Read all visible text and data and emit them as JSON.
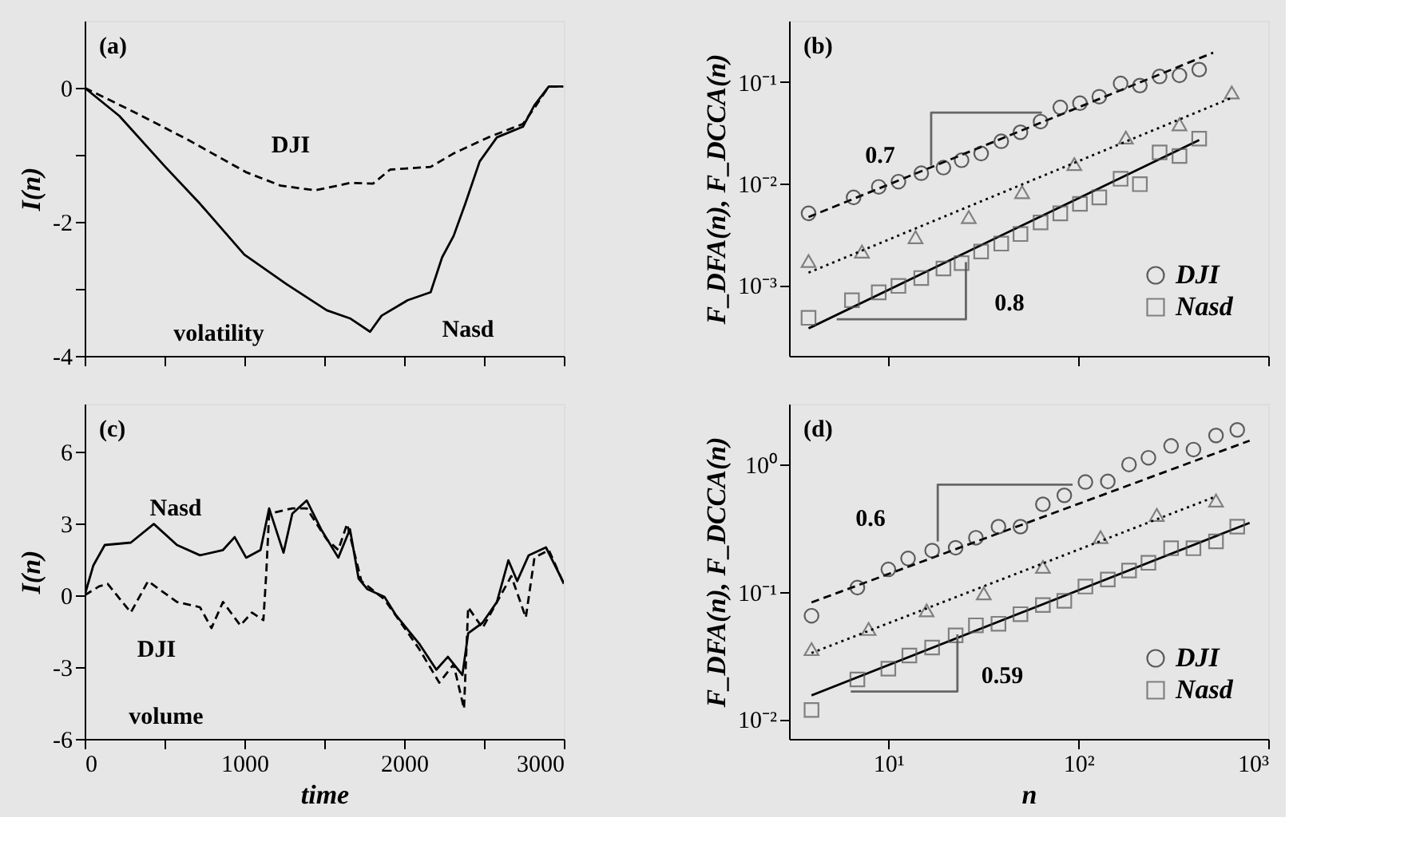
{
  "chart_data": [
    {
      "type": "line",
      "tick_labels": "y",
      "ylabel": "I(n)",
      "xlim": [
        0,
        3000
      ],
      "ylim": [
        -4,
        1
      ],
      "xticks": [
        0,
        {
          "value": 500,
          "label": null
        },
        1000,
        {
          "value": 1500,
          "label": null
        },
        2000,
        {
          "value": 2500,
          "label": null
        },
        3000
      ],
      "yticks": [
        -4,
        {
          "value": -3,
          "label": null
        },
        -2,
        {
          "value": -1,
          "label": null
        },
        0
      ],
      "grid": false,
      "legend": false,
      "annotations": [
        "(a)",
        "DJI",
        "volatility",
        "Nasd"
      ],
      "series": [
        {
          "color": "#000000",
          "line_style": "solid",
          "x": [
            0,
            217,
            505,
            722,
            1000,
            1264,
            1516,
            1661,
            1787,
            1859,
            2022,
            2166,
            2238,
            2310,
            2383,
            2473,
            2581,
            2744,
            2816,
            2906,
            2996
          ],
          "values": [
            0,
            -0.42,
            -1.18,
            -1.73,
            -2.49,
            -2.93,
            -3.32,
            -3.44,
            -3.64,
            -3.4,
            -3.17,
            -3.05,
            -2.53,
            -2.21,
            -1.73,
            -1.1,
            -0.74,
            -0.58,
            -0.26,
            0.02,
            0.02
          ]
        },
        {
          "color": "#000000",
          "line_style": "dashed",
          "x": [
            0,
            325,
            650,
            1011,
            1227,
            1444,
            1661,
            1805,
            1913,
            2166,
            2310,
            2527,
            2744,
            2816,
            2906,
            2996
          ],
          "values": [
            0,
            -0.38,
            -0.78,
            -1.26,
            -1.46,
            -1.53,
            -1.42,
            -1.43,
            -1.22,
            -1.18,
            -0.98,
            -0.74,
            -0.54,
            -0.3,
            0.02,
            0.02
          ]
        }
      ]
    },
    {
      "type": "scatter",
      "tick_labels": "y",
      "log": "xy",
      "ylabel": "F_DFA(n), F_DCCA(n)",
      "xlim": [
        3,
        1000
      ],
      "ylim": [
        0.0002,
        0.4
      ],
      "xticks": [
        {
          "value": 10,
          "label": null
        },
        {
          "value": 100,
          "label": null
        },
        {
          "value": 1000,
          "label": null
        }
      ],
      "yticks": [
        {
          "value": 0.001,
          "label": "10⁻³"
        },
        {
          "value": 0.01,
          "label": "10⁻²"
        },
        {
          "value": 0.1,
          "label": "10⁻¹"
        }
      ],
      "grid": false,
      "legend": "bottom right",
      "annotations": [
        "(b)",
        "0.7",
        "0.8"
      ],
      "series": [
        {
          "name": "DJI",
          "marker": "circle",
          "color": "#222222",
          "x": [
            3.8,
            6.56,
            8.9,
            11.3,
            14.9,
            19.5,
            24.3,
            30.8,
            39.3,
            49.6,
            63.3,
            80.4,
            102,
            129,
            167,
            211,
            268,
            341,
            433
          ],
          "values": [
            0.00507,
            0.00728,
            0.00925,
            0.0104,
            0.0126,
            0.0143,
            0.0169,
            0.0197,
            0.026,
            0.0319,
            0.0406,
            0.0561,
            0.0617,
            0.0714,
            0.0964,
            0.0919,
            0.113,
            0.116,
            0.132
          ]
        },
        {
          "marker": "triangle",
          "color": "#555555",
          "x": [
            3.8,
            7.26,
            13.9,
            26.5,
            50.6,
            95.3,
            178,
            341,
            643
          ],
          "values": [
            0.00172,
            0.00213,
            0.00295,
            0.00466,
            0.0082,
            0.0155,
            0.0283,
            0.0382,
            0.0787
          ]
        },
        {
          "name": "Nasd",
          "marker": "square",
          "color": "#555555",
          "x": [
            3.8,
            6.43,
            8.9,
            11.3,
            14.9,
            19.5,
            24.3,
            30.8,
            39.3,
            49.6,
            63.3,
            80.4,
            102,
            129,
            167,
            211,
            268,
            341,
            433
          ],
          "values": [
            0.000474,
            0.000706,
            0.000845,
            0.000977,
            0.00117,
            0.00145,
            0.00164,
            0.00213,
            0.00255,
            0.00317,
            0.00413,
            0.00507,
            0.00629,
            0.00728,
            0.0111,
            0.00982,
            0.0202,
            0.0186,
            0.0276
          ]
        },
        {
          "type": "line",
          "line_style": "dashed",
          "color": "#000000",
          "x": [
            3.8,
            513
          ],
          "values": [
            0.00466,
            0.194
          ]
        },
        {
          "type": "line",
          "line_style": "dotted",
          "color": "#000000",
          "x": [
            3.8,
            643
          ],
          "values": [
            0.00132,
            0.0697
          ]
        },
        {
          "type": "line",
          "line_style": "solid",
          "color": "#000000",
          "x": [
            3.8,
            433
          ],
          "values": [
            0.000373,
            0.0267
          ]
        },
        {
          "type": "line",
          "line_style": "solid",
          "color": "#666666",
          "x": [
            16.8,
            16.8,
            64.3
          ],
          "values": [
            0.015,
            0.0498,
            0.0498
          ]
        },
        {
          "type": "line",
          "line_style": "solid",
          "color": "#666666",
          "x": [
            5.35,
            25.6,
            25.6
          ],
          "values": [
            0.000458,
            0.000458,
            0.00168
          ]
        }
      ]
    },
    {
      "type": "line",
      "xlabel": "time",
      "ylabel": "I(n)",
      "xlim": [
        0,
        3000
      ],
      "ylim": [
        -6,
        8
      ],
      "xticks": [
        0,
        {
          "value": 500,
          "label": null
        },
        1000,
        {
          "value": 1500,
          "label": null
        },
        2000,
        {
          "value": 2500,
          "label": null
        },
        3000
      ],
      "yticks": [
        -6,
        -3,
        0,
        3,
        6
      ],
      "grid": false,
      "legend": false,
      "annotations": [
        "(c)",
        "Nasd",
        "DJI",
        "volume"
      ],
      "series": [
        {
          "color": "#000000",
          "line_style": "solid",
          "x": [
            0,
            54,
            126,
            289,
            433,
            578,
            722,
            866,
            939,
            1011,
            1101,
            1155,
            1245,
            1300,
            1390,
            1480,
            1588,
            1661,
            1715,
            1769,
            1877,
            1949,
            2094,
            2202,
            2274,
            2365,
            2401,
            2491,
            2581,
            2653,
            2708,
            2780,
            2888,
            2978,
            3000
          ],
          "values": [
            0,
            1.24,
            2.1,
            2.2,
            2.98,
            2.1,
            1.67,
            1.89,
            2.43,
            1.57,
            1.89,
            3.63,
            1.78,
            3.41,
            3.96,
            2.76,
            1.57,
            2.76,
            0.7,
            0.26,
            -0.07,
            -0.83,
            -2.02,
            -3.11,
            -2.57,
            -3.33,
            -1.59,
            -1.15,
            -0.28,
            1.46,
            0.59,
            1.67,
            2.0,
            0.8,
            0.48
          ]
        },
        {
          "color": "#000000",
          "line_style": "dashed",
          "x": [
            0,
            90,
            144,
            289,
            397,
            578,
            722,
            794,
            866,
            975,
            1047,
            1119,
            1137,
            1155,
            1300,
            1390,
            1516,
            1588,
            1643,
            1733,
            1877,
            2094,
            2220,
            2310,
            2375,
            2401,
            2491,
            2599,
            2671,
            2762,
            2816,
            2906,
            3000
          ],
          "values": [
            0,
            0.37,
            0.48,
            -0.72,
            0.59,
            -0.28,
            -0.5,
            -1.37,
            -0.28,
            -1.26,
            -0.72,
            -1.04,
            0.91,
            3.41,
            3.63,
            3.63,
            2.33,
            1.89,
            2.98,
            0.59,
            -0.17,
            -2.24,
            -3.65,
            -2.89,
            -4.74,
            -0.5,
            -1.37,
            -0.07,
            0.8,
            -0.93,
            1.57,
            1.89,
            0.48
          ]
        }
      ]
    },
    {
      "type": "scatter",
      "log": "xy",
      "xlabel": "n",
      "ylabel": "F_DFA(n), F_DCCA(n)",
      "xlim": [
        3,
        1000
      ],
      "ylim": [
        0.007,
        3
      ],
      "xticks": [
        {
          "value": 10,
          "label": "10¹"
        },
        {
          "value": 100,
          "label": "10²"
        },
        {
          "value": 1000,
          "label": "10³"
        }
      ],
      "yticks": [
        {
          "value": 0.01,
          "label": "10⁻²"
        },
        {
          "value": 0.1,
          "label": "10⁻¹"
        },
        {
          "value": 1,
          "label": "10⁰"
        }
      ],
      "grid": false,
      "legend": "bottom right",
      "annotations": [
        "(d)",
        "0.6",
        "0.59"
      ],
      "series": [
        {
          "name": "DJI",
          "marker": "circle",
          "color": "#222222",
          "x": [
            3.94,
            6.87,
            10,
            12.7,
            17,
            22.6,
            28.9,
            38,
            49.6,
            65.1,
            84.4,
            109,
            143,
            185,
            234,
            308,
            404,
            531,
            687
          ],
          "values": [
            0.0649,
            0.108,
            0.15,
            0.183,
            0.211,
            0.222,
            0.266,
            0.325,
            0.325,
            0.487,
            0.573,
            0.729,
            0.736,
            1.0,
            1.13,
            1.4,
            1.31,
            1.69,
            1.87
          ]
        },
        {
          "marker": "triangle",
          "color": "#555555",
          "x": [
            3.94,
            7.87,
            15.9,
            31.8,
            65.1,
            131,
            259,
            531
          ],
          "values": [
            0.0355,
            0.0511,
            0.0715,
            0.0972,
            0.157,
            0.269,
            0.402,
            0.521
          ]
        },
        {
          "name": "Nasd",
          "marker": "square",
          "color": "#555555",
          "x": [
            3.94,
            6.87,
            10,
            12.9,
            17,
            22.6,
            28.9,
            38,
            49.6,
            65.1,
            84.4,
            109,
            143,
            185,
            234,
            308,
            404,
            531,
            687
          ],
          "values": [
            0.0118,
            0.0205,
            0.0249,
            0.0316,
            0.0365,
            0.0455,
            0.0546,
            0.0562,
            0.0668,
            0.0787,
            0.085,
            0.11,
            0.125,
            0.147,
            0.169,
            0.22,
            0.22,
            0.249,
            0.325
          ]
        },
        {
          "type": "line",
          "line_style": "dashed",
          "color": "#000000",
          "x": [
            3.94,
            798
          ],
          "values": [
            0.0826,
            1.54
          ]
        },
        {
          "type": "line",
          "line_style": "dotted",
          "color": "#000000",
          "x": [
            3.94,
            531
          ],
          "values": [
            0.0331,
            0.562
          ]
        },
        {
          "type": "line",
          "line_style": "solid",
          "color": "#000000",
          "x": [
            3.94,
            798
          ],
          "values": [
            0.0154,
            0.348
          ]
        },
        {
          "type": "line",
          "line_style": "solid",
          "color": "#666666",
          "x": [
            18.2,
            18.2,
            93.3
          ],
          "values": [
            0.249,
            0.695,
            0.695
          ]
        },
        {
          "type": "line",
          "line_style": "solid",
          "color": "#666666",
          "x": [
            6.34,
            23.1,
            23.1
          ],
          "values": [
            0.0165,
            0.0165,
            0.0464
          ]
        }
      ]
    }
  ]
}
